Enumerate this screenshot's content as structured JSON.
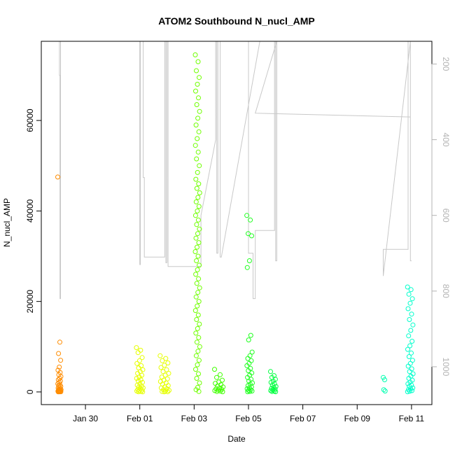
{
  "chart_data": {
    "type": "scatter",
    "title": "ATOM2 Southbound N_nucl_AMP",
    "xlabel": "Date",
    "ylabel": "N_nucl_AMP",
    "x_axis": {
      "type": "date",
      "range": [
        "2022-01-28T09:00",
        "2022-02-11T18:00"
      ],
      "ticks": [
        {
          "date": "2022-01-30",
          "label": "Jan 30"
        },
        {
          "date": "2022-02-01",
          "label": "Feb 01"
        },
        {
          "date": "2022-02-03",
          "label": "Feb 03"
        },
        {
          "date": "2022-02-05",
          "label": "Feb 05"
        },
        {
          "date": "2022-02-07",
          "label": "Feb 07"
        },
        {
          "date": "2022-02-09",
          "label": "Feb 09"
        },
        {
          "date": "2022-02-11",
          "label": "Feb 11"
        }
      ]
    },
    "y_axis": {
      "range": [
        -2800,
        77500
      ],
      "ticks": [
        0,
        20000,
        40000,
        60000
      ]
    },
    "y2_axis": {
      "color": "#b3b3b3",
      "reversed": true,
      "range": [
        1100,
        140
      ],
      "ticks": [
        200,
        400,
        600,
        800,
        1000
      ]
    },
    "grid": false,
    "legend": "none",
    "clusters": [
      {
        "date": "2022-01-29T01:00",
        "spread_hours": 3,
        "color": "#ff8c00",
        "values": [
          47500,
          11000,
          8500,
          7000,
          5500,
          4800,
          4300,
          3800,
          3400,
          3000,
          2700,
          2400,
          2100,
          1800,
          1600,
          1400,
          1200,
          1000,
          850,
          700,
          600,
          500,
          400,
          300,
          250,
          200,
          150,
          100,
          80,
          50,
          30,
          10
        ]
      },
      {
        "date": "2022-02-01T00:00",
        "spread_hours": 6,
        "color": "#e6ff00",
        "values": [
          9800,
          9200,
          8700,
          7600,
          6900,
          6300,
          5800,
          5300,
          4900,
          4500,
          4100,
          3700,
          3300,
          3000,
          2700,
          2400,
          2100,
          1800,
          1500,
          1300,
          1100,
          900,
          700,
          550,
          400,
          300,
          200,
          100,
          50,
          20
        ]
      },
      {
        "date": "2022-02-01T22:00",
        "spread_hours": 8,
        "color": "#e6ff00",
        "values": [
          8000,
          7400,
          6900,
          6400,
          5900,
          5400,
          4900,
          4500,
          4100,
          3700,
          3300,
          2900,
          2600,
          2300,
          2000,
          1700,
          1400,
          1100,
          900,
          700,
          500,
          350,
          200,
          100,
          50,
          20
        ]
      },
      {
        "date": "2022-02-03T03:00",
        "spread_hours": 4,
        "color": "#6fff00",
        "values": [
          74500,
          73000,
          71000,
          69500,
          68000,
          66500,
          65000,
          63500,
          62000,
          60500,
          59000,
          57500,
          56000,
          54500,
          53000,
          51500,
          50000,
          48500,
          47000,
          46000,
          45000,
          44000,
          43000,
          42000,
          41000,
          40000,
          39000,
          38000,
          37000,
          36000,
          35000,
          34000,
          33000,
          32000,
          31000,
          30000,
          29000,
          28000,
          27000,
          26000,
          25000,
          24000,
          23000,
          22000,
          21000,
          20000,
          19000,
          18000,
          17000,
          16000,
          15000,
          14000,
          13000,
          12000,
          11000,
          10000,
          9000,
          8000,
          7000,
          6000,
          5000,
          4000,
          3000,
          2000,
          1000,
          500,
          100
        ]
      },
      {
        "date": "2022-02-03T22:00",
        "spread_hours": 8,
        "color": "#40ff00",
        "values": [
          5000,
          3800,
          3200,
          2600,
          2200,
          1900,
          1600,
          1300,
          1100,
          900,
          700,
          550,
          400,
          300,
          200,
          100,
          50
        ]
      },
      {
        "date": "2022-02-05T01:00",
        "spread_hours": 5,
        "color": "#20ff20",
        "values": [
          39000,
          38000,
          35000,
          34500,
          29000,
          27500,
          12500,
          11500,
          8800,
          8000,
          7400,
          6900,
          6300,
          5800,
          5200,
          4700,
          4200,
          3700,
          3200,
          2800,
          2400,
          2000,
          1700,
          1400,
          1100,
          900,
          700,
          500,
          350,
          200,
          100,
          50
        ]
      },
      {
        "date": "2022-02-05T22:00",
        "spread_hours": 5,
        "color": "#00ff40",
        "values": [
          4500,
          3600,
          3200,
          2800,
          2400,
          2100,
          1800,
          1500,
          1200,
          1000,
          800,
          600,
          450,
          300,
          200,
          100,
          50
        ]
      },
      {
        "date": "2022-02-10T00:00",
        "spread_hours": 2,
        "color": "#00ffb0",
        "values": [
          3200,
          2700,
          500,
          200
        ]
      },
      {
        "date": "2022-02-10T23:00",
        "spread_hours": 5,
        "color": "#00ffcc",
        "values": [
          23200,
          22600,
          21600,
          20600,
          19600,
          18400,
          17200,
          16000,
          14800,
          13600,
          12400,
          11200,
          10200,
          9400,
          8600,
          7800,
          7000,
          6300,
          5700,
          5100,
          4500,
          4000,
          3500,
          3000,
          2600,
          2200,
          1800,
          1500,
          1200,
          900,
          700,
          500,
          300,
          150,
          50
        ]
      }
    ],
    "right_axis_series": {
      "color": "#c8c8c8",
      "points": [
        [
          "2022-01-29T01:00",
          140
        ],
        [
          "2022-01-29T01:00",
          230
        ],
        [
          "2022-01-29T01:30",
          230
        ],
        [
          "2022-01-29T01:30",
          820
        ],
        [
          "2022-01-29T02:00",
          820
        ],
        [
          "2022-01-29T02:00",
          140
        ],
        [
          "2022-02-01T00:00",
          140
        ],
        [
          "2022-02-01T00:00",
          730
        ],
        [
          "2022-02-01T00:30",
          730
        ],
        [
          "2022-02-01T00:30",
          140
        ],
        [
          "2022-02-01T03:00",
          140
        ],
        [
          "2022-02-01T03:00",
          500
        ],
        [
          "2022-02-01T04:00",
          500
        ],
        [
          "2022-02-01T04:00",
          710
        ],
        [
          "2022-02-01T22:00",
          710
        ],
        [
          "2022-02-01T22:00",
          140
        ],
        [
          "2022-02-01T23:00",
          140
        ],
        [
          "2022-02-01T23:00",
          725
        ],
        [
          "2022-02-02T00:00",
          725
        ],
        [
          "2022-02-02T00:00",
          140
        ],
        [
          "2022-02-02T01:00",
          140
        ],
        [
          "2022-02-02T01:00",
          735
        ],
        [
          "2022-02-03T06:00",
          735
        ],
        [
          "2022-02-03T06:00",
          600
        ],
        [
          "2022-02-03T19:00",
          400
        ],
        [
          "2022-02-03T19:00",
          140
        ],
        [
          "2022-02-03T20:00",
          140
        ],
        [
          "2022-02-03T20:00",
          700
        ],
        [
          "2022-02-03T21:00",
          700
        ],
        [
          "2022-02-03T21:00",
          140
        ],
        [
          "2022-02-03T23:00",
          140
        ],
        [
          "2022-02-03T23:00",
          710
        ],
        [
          "2022-02-04T00:00",
          710
        ],
        [
          "2022-02-05T10:00",
          140
        ],
        [
          "2022-02-05T00:00",
          140
        ],
        [
          "2022-02-05T00:00",
          700
        ],
        [
          "2022-02-05T04:00",
          700
        ],
        [
          "2022-02-05T04:00",
          820
        ],
        [
          "2022-02-05T06:00",
          820
        ],
        [
          "2022-02-05T06:00",
          640
        ],
        [
          "2022-02-05T23:00",
          640
        ],
        [
          "2022-02-05T23:00",
          140
        ],
        [
          "2022-02-06T00:00",
          140
        ],
        [
          "2022-02-06T00:00",
          720
        ],
        [
          "2022-02-06T01:00",
          720
        ],
        [
          "2022-02-06T01:00",
          140
        ],
        [
          "2022-02-05T06:00",
          330
        ],
        [
          "2022-02-10T23:00",
          340
        ],
        [
          "2022-02-10T23:00",
          140
        ],
        [
          "2022-02-09T23:00",
          760
        ],
        [
          "2022-02-09T23:00",
          690
        ],
        [
          "2022-02-10T21:00",
          690
        ],
        [
          "2022-02-10T21:00",
          140
        ],
        [
          "2022-02-10T23:00",
          140
        ],
        [
          "2022-02-10T23:00",
          720
        ],
        [
          "2022-02-11T00:00",
          720
        ]
      ]
    }
  }
}
